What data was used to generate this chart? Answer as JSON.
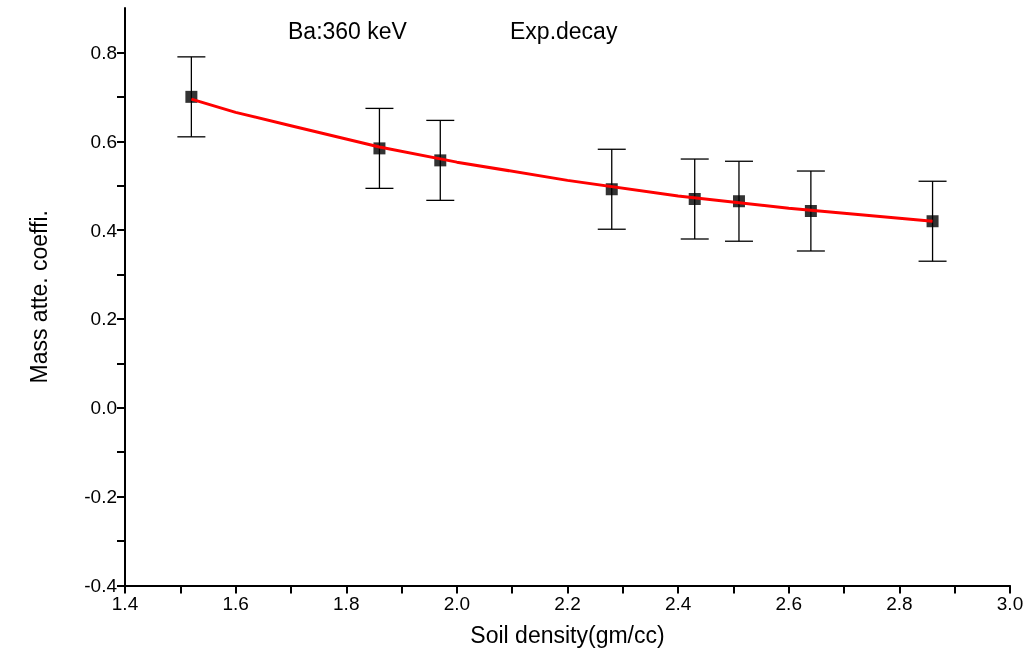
{
  "chart_data": {
    "type": "scatter",
    "title": "Ba:360 keV",
    "subtitle": "Exp.decay",
    "xlabel": "Soil density(gm/cc)",
    "ylabel": "Mass atte. coeffi.",
    "series": [
      {
        "color": "#000000",
        "marker": "square",
        "x": [
          1.52,
          1.86,
          1.97,
          2.28,
          2.43,
          2.51,
          2.64,
          2.86
        ],
        "values": [
          0.7,
          0.584,
          0.557,
          0.492,
          0.47,
          0.465,
          0.443,
          0.42
        ],
        "errors": [
          0.09,
          0.09,
          0.09,
          0.09,
          0.09,
          0.09,
          0.09,
          0.09
        ]
      },
      {
        "type": "line",
        "color": "#ff0000",
        "marker": "none",
        "line_style": "solid",
        "x": [
          1.52,
          1.6,
          1.7,
          1.86,
          2.0,
          2.2,
          2.4,
          2.6,
          2.86
        ],
        "values": [
          0.695,
          0.665,
          0.635,
          0.587,
          0.553,
          0.512,
          0.477,
          0.449,
          0.42
        ]
      }
    ],
    "xlim": [
      1.4,
      3.0
    ],
    "xticks": [
      {
        "value": 1.4,
        "label": "1.4"
      },
      {
        "value": 1.5,
        "label": null
      },
      {
        "value": 1.6,
        "label": "1.6"
      },
      {
        "value": 1.7,
        "label": null
      },
      {
        "value": 1.8,
        "label": "1.8"
      },
      {
        "value": 1.9,
        "label": null
      },
      {
        "value": 2.0,
        "label": "2.0"
      },
      {
        "value": 2.1,
        "label": null
      },
      {
        "value": 2.2,
        "label": "2.2"
      },
      {
        "value": 2.3,
        "label": null
      },
      {
        "value": 2.4,
        "label": "2.4"
      },
      {
        "value": 2.5,
        "label": null
      },
      {
        "value": 2.6,
        "label": "2.6"
      },
      {
        "value": 2.7,
        "label": null
      },
      {
        "value": 2.8,
        "label": "2.8"
      },
      {
        "value": 2.9,
        "label": null
      },
      {
        "value": 3.0,
        "label": "3.0"
      }
    ],
    "ylim": [
      -0.4,
      0.9
    ],
    "yticks": [
      {
        "value": -0.4,
        "label": "-0.4"
      },
      {
        "value": -0.3,
        "label": null
      },
      {
        "value": -0.2,
        "label": "-0.2"
      },
      {
        "value": -0.1,
        "label": null
      },
      {
        "value": 0,
        "label": "0.0"
      },
      {
        "value": 0.1,
        "label": null
      },
      {
        "value": 0.2,
        "label": "0.2"
      },
      {
        "value": 0.3,
        "label": null
      },
      {
        "value": 0.4,
        "label": "0.4"
      },
      {
        "value": 0.5,
        "label": null
      },
      {
        "value": 0.6,
        "label": "0.6"
      },
      {
        "value": 0.7,
        "label": null
      },
      {
        "value": 0.8,
        "label": "0.8"
      }
    ],
    "grid": false
  }
}
